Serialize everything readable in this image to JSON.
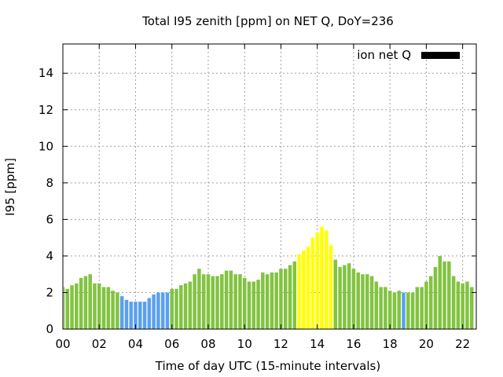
{
  "chart_data": {
    "type": "bar",
    "title": "Total I95 zenith [ppm] on NET Q, DoY=236",
    "xlabel": "Time of day UTC (15-minute intervals)",
    "ylabel": "I95 [ppm]",
    "legend": {
      "label": "ion net Q",
      "position": "top-right",
      "color": "#000000"
    },
    "grid": true,
    "xlim": [
      0,
      22.75
    ],
    "ylim": [
      0,
      15.6
    ],
    "x_ticks": [
      {
        "value": 0,
        "label": "00"
      },
      {
        "value": 2,
        "label": "02"
      },
      {
        "value": 4,
        "label": "04"
      },
      {
        "value": 6,
        "label": "06"
      },
      {
        "value": 8,
        "label": "08"
      },
      {
        "value": 10,
        "label": "10"
      },
      {
        "value": 12,
        "label": "12"
      },
      {
        "value": 14,
        "label": "14"
      },
      {
        "value": 16,
        "label": "16"
      },
      {
        "value": 18,
        "label": "18"
      },
      {
        "value": 20,
        "label": "20"
      },
      {
        "value": 22,
        "label": "22"
      }
    ],
    "y_ticks": [
      {
        "value": 0,
        "label": "0"
      },
      {
        "value": 2,
        "label": "2"
      },
      {
        "value": 4,
        "label": "4"
      },
      {
        "value": 6,
        "label": "6"
      },
      {
        "value": 8,
        "label": "8"
      },
      {
        "value": 10,
        "label": "10"
      },
      {
        "value": 12,
        "label": "12"
      },
      {
        "value": 14,
        "label": "14"
      }
    ],
    "bar_interval_hours": 0.25,
    "colors": {
      "green": "#82c341",
      "blue": "#5aa0ee",
      "yellow": "#ffff00"
    },
    "values": [
      2.3,
      2.2,
      2.4,
      2.5,
      2.8,
      2.9,
      3.0,
      2.5,
      2.5,
      2.3,
      2.3,
      2.1,
      2.0,
      1.8,
      1.6,
      1.5,
      1.5,
      1.5,
      1.5,
      1.7,
      1.9,
      2.0,
      2.0,
      2.0,
      2.2,
      2.2,
      2.4,
      2.5,
      2.6,
      3.0,
      3.3,
      3.0,
      3.0,
      2.9,
      2.9,
      3.0,
      3.2,
      3.2,
      3.0,
      3.0,
      2.8,
      2.6,
      2.6,
      2.7,
      3.1,
      3.0,
      3.1,
      3.1,
      3.3,
      3.3,
      3.5,
      3.7,
      4.1,
      4.3,
      4.5,
      5.0,
      5.3,
      5.6,
      5.4,
      4.6,
      3.8,
      3.4,
      3.5,
      3.6,
      3.3,
      3.1,
      3.0,
      3.0,
      2.9,
      2.6,
      2.3,
      2.3,
      2.1,
      2.0,
      2.1,
      2.0,
      2.0,
      2.0,
      2.3,
      2.3,
      2.6,
      2.9,
      3.4,
      4.0,
      3.7,
      3.7,
      2.9,
      2.6,
      2.5,
      2.6,
      2.3
    ],
    "bar_colors": [
      "green",
      "green",
      "green",
      "green",
      "green",
      "green",
      "green",
      "green",
      "green",
      "green",
      "green",
      "green",
      "green",
      "blue",
      "blue",
      "blue",
      "blue",
      "blue",
      "blue",
      "blue",
      "blue",
      "blue",
      "blue",
      "blue",
      "green",
      "green",
      "green",
      "green",
      "green",
      "green",
      "green",
      "green",
      "green",
      "green",
      "green",
      "green",
      "green",
      "green",
      "green",
      "green",
      "green",
      "green",
      "green",
      "green",
      "green",
      "green",
      "green",
      "green",
      "green",
      "green",
      "green",
      "green",
      "yellow",
      "yellow",
      "yellow",
      "yellow",
      "yellow",
      "yellow",
      "yellow",
      "yellow",
      "green",
      "green",
      "green",
      "green",
      "green",
      "green",
      "green",
      "green",
      "green",
      "green",
      "green",
      "green",
      "green",
      "green",
      "green",
      "blue",
      "green",
      "green",
      "green",
      "green",
      "green",
      "green",
      "green",
      "green",
      "green",
      "green",
      "green",
      "green",
      "green",
      "green",
      "green"
    ]
  }
}
